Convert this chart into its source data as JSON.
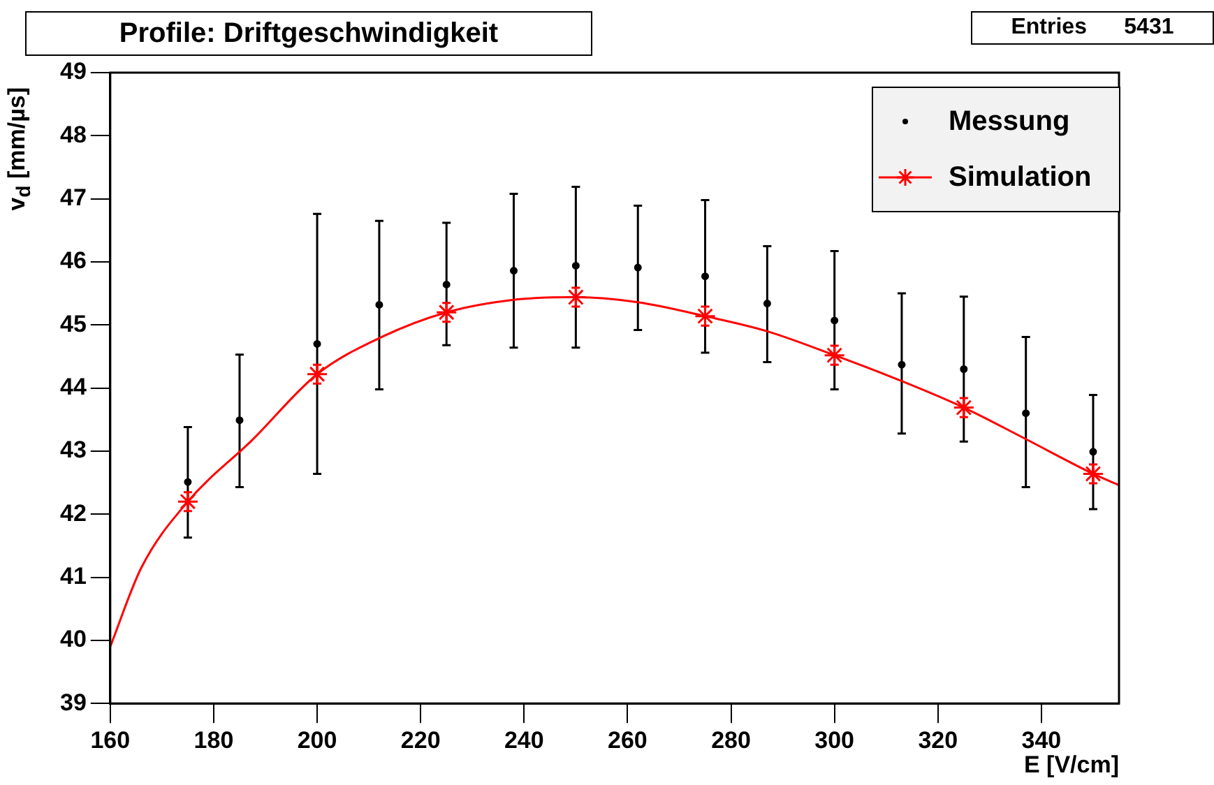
{
  "chart_data": {
    "type": "scatter",
    "title": "Profile: Driftgeschwindigkeit",
    "xlabel": "E [V/cm]",
    "ylabel": "v$_{d}$ [mm/µs]",
    "annotations": [
      "Entries      5431"
    ],
    "xlim": [
      160,
      355
    ],
    "xticks": [
      160,
      180,
      200,
      220,
      240,
      260,
      280,
      300,
      320,
      340
    ],
    "ylim": [
      39,
      49
    ],
    "yticks": [
      39,
      40,
      41,
      42,
      43,
      44,
      45,
      46,
      47,
      48,
      49
    ],
    "grid": false,
    "legend": "top right",
    "series": [
      {
        "name": "Messung",
        "color": "#000000",
        "marker": "circle",
        "x": [
          175,
          185,
          200,
          212,
          225,
          238,
          250,
          262,
          275,
          287,
          300,
          313,
          325,
          337,
          350
        ],
        "values": [
          42.51,
          43.49,
          44.7,
          45.32,
          45.64,
          45.86,
          45.94,
          45.91,
          45.77,
          45.34,
          45.07,
          44.37,
          44.3,
          43.6,
          42.99
        ],
        "errors": [
          [
            41.63,
            43.38
          ],
          [
            42.43,
            44.53
          ],
          [
            42.64,
            46.76
          ],
          [
            43.98,
            46.65
          ],
          [
            44.68,
            46.62
          ],
          [
            44.64,
            47.08
          ],
          [
            44.64,
            47.19
          ],
          [
            44.92,
            46.89
          ],
          [
            44.56,
            46.98
          ],
          [
            44.41,
            46.25
          ],
          [
            43.98,
            46.17
          ],
          [
            43.28,
            45.5
          ],
          [
            43.15,
            45.45
          ],
          [
            42.43,
            44.81
          ],
          [
            42.08,
            43.89
          ]
        ]
      },
      {
        "name": "Simulation",
        "color": "#ff0000",
        "marker": "cross",
        "x": [
          175,
          200,
          225,
          250,
          275,
          300,
          325,
          350
        ],
        "values": [
          42.2,
          44.22,
          45.2,
          45.44,
          45.14,
          44.52,
          43.69,
          42.64
        ],
        "errors": [
          0.15,
          0.15,
          0.15,
          0.15,
          0.15,
          0.15,
          0.15,
          0.15
        ]
      },
      {
        "type": "line",
        "color": "#ff0000",
        "marker": "none",
        "line_style": "solid",
        "x": [
          160,
          166,
          175,
          187.5,
          200,
          212.5,
          225,
          238,
          250,
          262,
          275,
          287,
          300,
          313,
          325,
          337,
          350,
          355
        ],
        "values": [
          39.9,
          41.15,
          42.2,
          43.18,
          44.22,
          44.81,
          45.2,
          45.4,
          45.44,
          45.36,
          45.14,
          44.9,
          44.52,
          44.11,
          43.69,
          43.19,
          42.64,
          42.46
        ]
      }
    ]
  }
}
